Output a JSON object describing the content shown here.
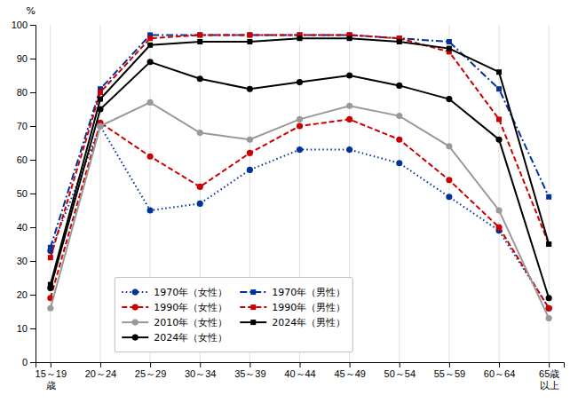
{
  "chart_data": {
    "type": "line",
    "ylabel": "%",
    "categories": [
      "15～19\n歳",
      "20～24",
      "25～29",
      "30～34",
      "35～39",
      "40～44",
      "45～49",
      "50～54",
      "55～59",
      "60～64",
      "65歳\n以上"
    ],
    "series": [
      {
        "name": "1970年（女性）",
        "color": "#003399",
        "line_style": "dotted",
        "marker": "circle",
        "values": [
          33,
          70,
          45,
          47,
          57,
          63,
          63,
          59,
          49,
          39,
          16
        ]
      },
      {
        "name": "1990年（女性）",
        "color": "#CC0000",
        "line_style": "dashed",
        "marker": "circle",
        "values": [
          19,
          71,
          61,
          52,
          62,
          70,
          72,
          66,
          54,
          40,
          16
        ]
      },
      {
        "name": "2010年（女性）",
        "color": "#999999",
        "line_style": "solid",
        "marker": "circle",
        "values": [
          16,
          70,
          77,
          68,
          66,
          72,
          76,
          73,
          64,
          45,
          13
        ]
      },
      {
        "name": "2024年（女性）",
        "color": "#000000",
        "line_style": "solid",
        "marker": "circle",
        "values": [
          22,
          75,
          89,
          84,
          81,
          83,
          85,
          82,
          78,
          66,
          19
        ]
      },
      {
        "name": "1970年（男性）",
        "color": "#003399",
        "line_style": "dashdot",
        "marker": "square",
        "values": [
          34,
          81,
          97,
          97,
          97,
          97,
          97,
          96,
          95,
          81,
          49
        ]
      },
      {
        "name": "1990年（男性）",
        "color": "#CC0000",
        "line_style": "dashed",
        "marker": "square",
        "values": [
          31,
          80,
          96,
          97,
          97,
          97,
          97,
          96,
          92,
          72,
          35
        ]
      },
      {
        "name": "2024年（男性）",
        "color": "#000000",
        "line_style": "solid",
        "marker": "square",
        "values": [
          23,
          78,
          94,
          95,
          95,
          96,
          96,
          95,
          93,
          86,
          35
        ]
      }
    ],
    "ylim": [
      0,
      100
    ],
    "yticks": [
      0,
      10,
      20,
      30,
      40,
      50,
      60,
      70,
      80,
      90,
      100
    ],
    "grid": "x",
    "legend": "lower left"
  }
}
